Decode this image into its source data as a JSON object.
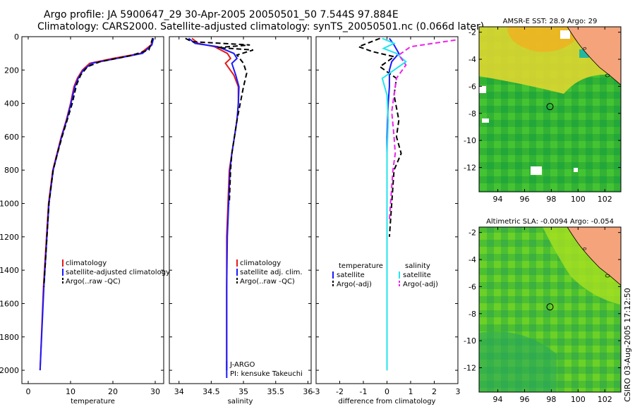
{
  "header": {
    "line1": "Argo profile: JA 5900647_29 30-Apr-2005 20050501_50 7.544S 97.884E",
    "line2": "Climatology: CARS2000. Satellite-adjusted climatology: synTS_20050501.nc (0.066d later)"
  },
  "side_stamp": "CSIRO 03-Aug-2005 17:12:50",
  "colors": {
    "climatology": "#e41a1c",
    "satellite": "#1a1aff",
    "argo": "#000000",
    "sat_salinity": "#22e5ee",
    "argo_adj_salinity": "#ee22ee",
    "land": "#f4a37b"
  },
  "chart_data": [
    {
      "type": "line",
      "xlabel": "temperature",
      "ylabel": "",
      "xlim": [
        -1.5,
        32
      ],
      "ylim": [
        2080,
        0
      ],
      "xticks": [
        0,
        10,
        20,
        30
      ],
      "yticks": [
        0,
        200,
        400,
        600,
        800,
        1000,
        1200,
        1400,
        1600,
        1800,
        2000
      ],
      "legend": [
        "climatology",
        "satellite-adjusted climatology",
        "Argo(..raw -QC)"
      ],
      "legend_position": "lower-right",
      "series": [
        {
          "name": "climatology",
          "color": "#e41a1c",
          "style": "solid",
          "x": [
            29.5,
            29.0,
            26.5,
            20.0,
            14.5,
            12.8,
            11.6,
            10.8,
            10.0,
            9.0,
            7.8,
            6.8,
            5.8,
            4.8,
            3.6,
            2.8
          ],
          "y": [
            10,
            50,
            100,
            130,
            160,
            200,
            250,
            300,
            400,
            500,
            600,
            700,
            800,
            1000,
            1500,
            2000
          ]
        },
        {
          "name": "satellite-adjusted climatology",
          "color": "#1a1aff",
          "style": "solid",
          "x": [
            29.6,
            29.2,
            27.0,
            21.0,
            15.0,
            13.0,
            11.8,
            11.0,
            10.1,
            9.1,
            7.9,
            6.9,
            5.9,
            4.9,
            3.7,
            2.8
          ],
          "y": [
            10,
            50,
            100,
            130,
            160,
            200,
            250,
            300,
            400,
            500,
            600,
            700,
            800,
            1000,
            1500,
            2000
          ]
        },
        {
          "name": "Argo(..raw -QC)",
          "color": "#000000",
          "style": "dashed",
          "x": [
            29.4,
            29.0,
            28.5,
            24.0,
            17.0,
            14.0,
            12.4,
            11.4,
            10.4,
            9.2,
            8.0,
            6.9,
            5.9,
            4.9,
            3.7
          ],
          "y": [
            8,
            40,
            80,
            115,
            150,
            180,
            230,
            290,
            400,
            500,
            600,
            700,
            800,
            1000,
            1500
          ]
        }
      ]
    },
    {
      "type": "line",
      "xlabel": "salinity",
      "ylabel": "",
      "xlim": [
        33.85,
        36.05
      ],
      "ylim": [
        2080,
        0
      ],
      "xticks": [
        34,
        34.5,
        35,
        35.5,
        36
      ],
      "yticks": [
        0,
        200,
        400,
        600,
        800,
        1000,
        1200,
        1400,
        1600,
        1800,
        2000
      ],
      "legend": [
        "climatology",
        "satellite adj. clim.",
        "Argo(..raw -QC)"
      ],
      "legend_position": "lower-right",
      "annotations": [
        "J-ARGO",
        "PI: kensuke Takeuchi"
      ],
      "series": [
        {
          "name": "climatology",
          "color": "#e41a1c",
          "style": "solid",
          "x": [
            34.2,
            34.3,
            34.55,
            34.75,
            34.8,
            34.72,
            34.85,
            34.92,
            34.92,
            34.9,
            34.86,
            34.82,
            34.78,
            34.76,
            34.74,
            34.74,
            34.74
          ],
          "y": [
            10,
            40,
            60,
            100,
            130,
            160,
            230,
            300,
            400,
            500,
            600,
            700,
            800,
            1000,
            1200,
            1500,
            2000
          ]
        },
        {
          "name": "satellite adj. clim.",
          "color": "#1a1aff",
          "style": "solid",
          "x": [
            34.15,
            34.25,
            34.6,
            34.85,
            34.9,
            34.82,
            34.88,
            34.93,
            34.92,
            34.9,
            34.86,
            34.82,
            34.79,
            34.77,
            34.75,
            34.74,
            34.74
          ],
          "y": [
            10,
            40,
            60,
            100,
            130,
            160,
            230,
            300,
            400,
            500,
            600,
            700,
            800,
            1000,
            1200,
            1500,
            2000
          ]
        },
        {
          "name": "Argo(..raw -QC)",
          "color": "#000000",
          "style": "dashed",
          "x": [
            34.1,
            34.2,
            35.1,
            34.6,
            35.15,
            34.9,
            35.0,
            35.05,
            35.0,
            34.95,
            34.9,
            34.86,
            34.82,
            34.8,
            34.78
          ],
          "y": [
            10,
            30,
            50,
            65,
            80,
            110,
            160,
            220,
            300,
            400,
            500,
            600,
            700,
            800,
            1000
          ]
        }
      ]
    },
    {
      "type": "line",
      "xlabel": "difference from climatology",
      "ylabel": "",
      "xlim": [
        -3,
        3
      ],
      "ylim": [
        2080,
        0
      ],
      "xticks": [
        -3,
        -2,
        -1,
        0,
        1,
        2,
        3
      ],
      "yticks": [
        0,
        200,
        400,
        600,
        800,
        1000,
        1200,
        1400,
        1600,
        1800,
        2000
      ],
      "legend": [
        "temperature",
        "satellite",
        "Argo(-adj)",
        "salinity",
        "satellite",
        "Argo(-adj)"
      ],
      "legend_position": "lower-center",
      "series": [
        {
          "name": "satellite",
          "color": "#1a1aff",
          "style": "solid",
          "x": [
            0.1,
            0.3,
            0.5,
            0.2,
            0.1,
            0.1,
            0.05,
            0.0,
            0.0,
            0.0,
            0.0
          ],
          "y": [
            10,
            50,
            100,
            150,
            200,
            300,
            400,
            600,
            800,
            1000,
            2000
          ]
        },
        {
          "name": "Argo(-adj)",
          "color": "#000000",
          "style": "dashed",
          "x": [
            -0.3,
            -1.2,
            -0.6,
            0.3,
            -0.3,
            0.4,
            0.3,
            0.5,
            0.4,
            0.6,
            0.3,
            0.2,
            0.1
          ],
          "y": [
            10,
            60,
            90,
            120,
            180,
            250,
            350,
            500,
            600,
            700,
            800,
            1000,
            1200
          ]
        },
        {
          "name": "satellite",
          "color": "#22e5ee",
          "style": "solid",
          "x": [
            -0.2,
            0.3,
            -0.15,
            0.4,
            0.8,
            -0.2,
            0.0,
            0.05,
            0.0,
            0.0,
            0.0,
            0.0
          ],
          "y": [
            10,
            40,
            70,
            100,
            150,
            250,
            350,
            500,
            700,
            900,
            1200,
            2000
          ]
        },
        {
          "name": "Argo(-adj)",
          "color": "#ee22ee",
          "style": "dashed",
          "x": [
            2.9,
            1.0,
            0.5,
            0.8,
            0.4,
            0.3,
            0.2,
            0.3,
            0.35,
            0.25,
            0.2,
            0.15,
            0.1
          ],
          "y": [
            20,
            60,
            110,
            170,
            250,
            350,
            450,
            600,
            700,
            800,
            900,
            1000,
            1100
          ]
        }
      ]
    },
    {
      "type": "heatmap",
      "title": "AMSR-E SST: 28.9 Argo: 29",
      "xlim": [
        92.6,
        103.2
      ],
      "ylim": [
        -13.8,
        -1.6
      ],
      "xticks": [
        94,
        96,
        98,
        100,
        102
      ],
      "yticks": [
        -2,
        -4,
        -6,
        -8,
        -10,
        -12
      ],
      "marker": [
        97.9,
        -7.5
      ]
    },
    {
      "type": "heatmap",
      "title": "Altimetric SLA: -0.0094 Argo: -0.054",
      "xlim": [
        92.6,
        103.2
      ],
      "ylim": [
        -13.8,
        -1.6
      ],
      "xticks": [
        94,
        96,
        98,
        100,
        102
      ],
      "yticks": [
        -2,
        -4,
        -6,
        -8,
        -10,
        -12
      ],
      "marker": [
        97.9,
        -7.5
      ]
    }
  ]
}
